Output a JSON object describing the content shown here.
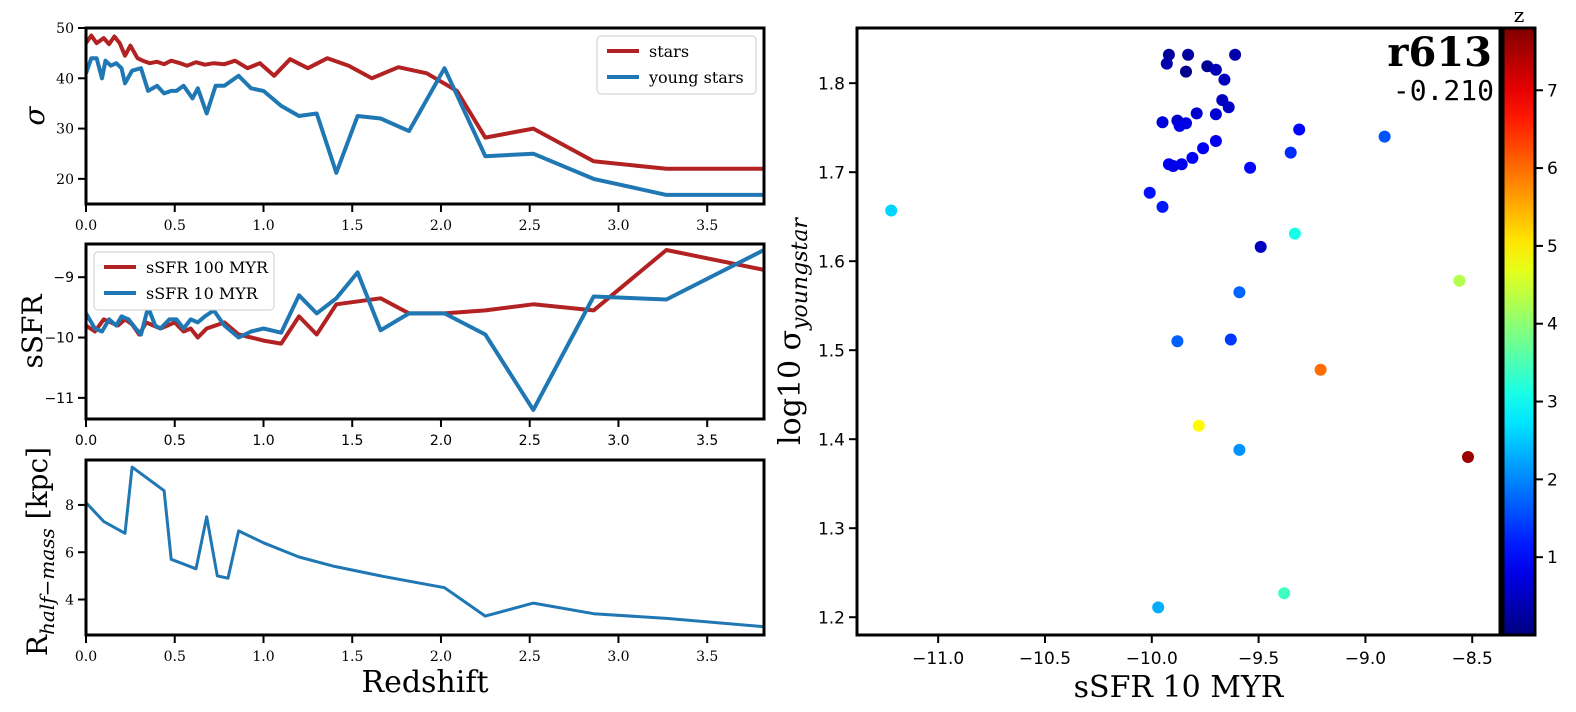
{
  "colors": {
    "stars": "#b22222",
    "young_stars": "#1f77b4",
    "axis": "#000000"
  },
  "chart_data": [
    {
      "type": "line",
      "name": "sigma-vs-redshift",
      "xlabel": "",
      "ylabel": "σ",
      "xlim": [
        0,
        3.82
      ],
      "ylim": [
        15,
        50
      ],
      "xticks": [
        0.0,
        0.5,
        1.0,
        1.5,
        2.0,
        2.5,
        3.0,
        3.5
      ],
      "xtick_labels": [
        "0.0",
        "0.5",
        "1.0",
        "1.5",
        "2.0",
        "2.5",
        "3.0",
        "3.5"
      ],
      "yticks": [
        20,
        30,
        40,
        50
      ],
      "ytick_labels": [
        "20",
        "30",
        "40",
        "50"
      ],
      "legend_position": "top-right",
      "series": [
        {
          "name": "stars",
          "x": [
            0.0,
            0.03,
            0.06,
            0.1,
            0.13,
            0.16,
            0.19,
            0.22,
            0.25,
            0.29,
            0.32,
            0.36,
            0.4,
            0.44,
            0.48,
            0.53,
            0.57,
            0.62,
            0.67,
            0.72,
            0.78,
            0.84,
            0.91,
            0.98,
            1.06,
            1.15,
            1.25,
            1.36,
            1.48,
            1.61,
            1.76,
            1.92,
            2.09,
            2.25,
            2.52,
            2.86,
            3.27,
            3.82
          ],
          "y": [
            47,
            48.5,
            47,
            48,
            46.8,
            48.3,
            47,
            44.5,
            46.5,
            44,
            43.5,
            43,
            43.3,
            42.8,
            43.5,
            43,
            42.5,
            43.2,
            42.7,
            43,
            42.8,
            43.5,
            42,
            43,
            40.5,
            43.8,
            42,
            44,
            42.5,
            40,
            42.2,
            41,
            37.5,
            28.2,
            30,
            23.5,
            22,
            22
          ]
        },
        {
          "name": "young stars",
          "x": [
            0.0,
            0.03,
            0.06,
            0.09,
            0.11,
            0.14,
            0.17,
            0.2,
            0.22,
            0.26,
            0.31,
            0.35,
            0.4,
            0.44,
            0.48,
            0.51,
            0.55,
            0.6,
            0.63,
            0.68,
            0.73,
            0.78,
            0.86,
            0.93,
            1.0,
            1.1,
            1.2,
            1.3,
            1.41,
            1.53,
            1.66,
            1.82,
            2.02,
            2.25,
            2.52,
            2.86,
            3.27,
            3.82
          ],
          "y": [
            41,
            44,
            44,
            40,
            43.5,
            42.5,
            43,
            42,
            39,
            41.5,
            42,
            37.5,
            38.5,
            37,
            37.5,
            37.5,
            38.5,
            36,
            38,
            33,
            38.5,
            38.5,
            40.5,
            38,
            37.5,
            34.5,
            32.5,
            33,
            21.2,
            32.5,
            32,
            29.5,
            42,
            24.5,
            25,
            20,
            16.8,
            16.8
          ]
        }
      ]
    },
    {
      "type": "line",
      "name": "ssfr-vs-redshift",
      "xlabel": "",
      "ylabel": "sSFR",
      "xlim": [
        0,
        3.82
      ],
      "ylim": [
        -11.35,
        -8.45
      ],
      "xticks": [
        0.0,
        0.5,
        1.0,
        1.5,
        2.0,
        2.5,
        3.0,
        3.5
      ],
      "xtick_labels": [
        "0.0",
        "0.5",
        "1.0",
        "1.5",
        "2.0",
        "2.5",
        "3.0",
        "3.5"
      ],
      "yticks": [
        -9,
        -10,
        -11
      ],
      "ytick_labels": [
        "−9",
        "−10",
        "−11"
      ],
      "legend_position": "top-left",
      "series": [
        {
          "name": "sSFR 100 MYR",
          "x": [
            0.0,
            0.05,
            0.1,
            0.14,
            0.18,
            0.22,
            0.26,
            0.3,
            0.34,
            0.38,
            0.42,
            0.46,
            0.5,
            0.55,
            0.59,
            0.63,
            0.68,
            0.73,
            0.78,
            0.86,
            0.93,
            1.0,
            1.1,
            1.2,
            1.3,
            1.41,
            1.66,
            1.82,
            2.02,
            2.25,
            2.52,
            2.86,
            3.27,
            3.82
          ],
          "y": [
            -9.8,
            -9.9,
            -9.7,
            -9.75,
            -9.8,
            -9.7,
            -9.78,
            -9.95,
            -9.75,
            -9.8,
            -9.85,
            -9.8,
            -9.75,
            -9.9,
            -9.85,
            -10.0,
            -9.85,
            -9.8,
            -9.75,
            -9.95,
            -10.0,
            -10.05,
            -10.1,
            -9.65,
            -9.95,
            -9.45,
            -9.35,
            -9.6,
            -9.6,
            -9.55,
            -9.45,
            -9.55,
            -8.55,
            -8.88
          ]
        },
        {
          "name": "sSFR 10 MYR",
          "x": [
            0.0,
            0.05,
            0.09,
            0.13,
            0.17,
            0.2,
            0.24,
            0.28,
            0.31,
            0.35,
            0.39,
            0.42,
            0.47,
            0.51,
            0.55,
            0.59,
            0.63,
            0.67,
            0.72,
            0.78,
            0.86,
            0.93,
            1.0,
            1.1,
            1.2,
            1.3,
            1.41,
            1.53,
            1.66,
            1.82,
            2.02,
            2.25,
            2.52,
            2.86,
            3.27,
            3.82
          ],
          "y": [
            -9.6,
            -9.85,
            -9.9,
            -9.7,
            -9.8,
            -9.65,
            -9.7,
            -9.85,
            -9.95,
            -9.5,
            -9.8,
            -9.85,
            -9.7,
            -9.7,
            -9.85,
            -9.7,
            -9.75,
            -9.65,
            -9.55,
            -9.8,
            -10.0,
            -9.9,
            -9.85,
            -9.92,
            -9.3,
            -9.6,
            -9.35,
            -8.92,
            -9.88,
            -9.6,
            -9.6,
            -9.95,
            -11.2,
            -9.32,
            -9.37,
            -8.55
          ]
        }
      ]
    },
    {
      "type": "line",
      "name": "rhalf-vs-redshift",
      "xlabel": "Redshift",
      "ylabel": "R_half−mass [kpc]",
      "ylabel_main": "R",
      "ylabel_sub": "half−mass",
      "ylabel_unit": " [kpc]",
      "xlim": [
        0,
        3.82
      ],
      "ylim": [
        2.5,
        9.9
      ],
      "xticks": [
        0.0,
        0.5,
        1.0,
        1.5,
        2.0,
        2.5,
        3.0,
        3.5
      ],
      "xtick_labels": [
        "0.0",
        "0.5",
        "1.0",
        "1.5",
        "2.0",
        "2.5",
        "3.0",
        "3.5"
      ],
      "yticks": [
        4,
        6,
        8
      ],
      "ytick_labels": [
        "4",
        "6",
        "8"
      ],
      "series": [
        {
          "x": [
            0.0,
            0.1,
            0.22,
            0.26,
            0.44,
            0.48,
            0.62,
            0.68,
            0.74,
            0.8,
            0.86,
            1.0,
            1.2,
            1.4,
            1.66,
            2.02,
            2.25,
            2.52,
            2.86,
            3.27,
            3.82
          ],
          "y": [
            8.1,
            7.3,
            6.8,
            9.6,
            8.6,
            5.7,
            5.3,
            7.5,
            5.0,
            4.9,
            6.9,
            6.4,
            5.8,
            5.4,
            5.0,
            4.5,
            3.3,
            3.85,
            3.4,
            3.2,
            2.85
          ]
        }
      ]
    },
    {
      "type": "scatter",
      "name": "sigma-vs-ssfr",
      "xlabel": "sSFR 10 MYR",
      "ylabel": "log10 σ_youngstar",
      "ylabel_main": "log10 σ",
      "ylabel_sub": "youngstar",
      "xlim": [
        -11.38,
        -8.37
      ],
      "ylim": [
        1.18,
        1.862
      ],
      "xticks": [
        -11.0,
        -10.5,
        -10.0,
        -9.5,
        -9.0,
        -8.5
      ],
      "xtick_labels": [
        "−11.0",
        "−10.5",
        "−10.0",
        "−9.5",
        "−9.0",
        "−8.5"
      ],
      "yticks": [
        1.2,
        1.3,
        1.4,
        1.5,
        1.6,
        1.7,
        1.8
      ],
      "ytick_labels": [
        "1.2",
        "1.3",
        "1.4",
        "1.5",
        "1.6",
        "1.7",
        "1.8"
      ],
      "annotation_title": "r613",
      "annotation_value": "-0.210",
      "colorbar": {
        "label": "z",
        "colormap": "jet",
        "range": [
          0,
          7.8
        ],
        "ticks": [
          1,
          2,
          3,
          4,
          5,
          6,
          7
        ],
        "tick_labels": [
          "1",
          "2",
          "3",
          "4",
          "5",
          "6",
          "7"
        ]
      },
      "points": [
        {
          "x": -9.92,
          "y": 1.832,
          "z": 0.2
        },
        {
          "x": -9.83,
          "y": 1.832,
          "z": 0.25
        },
        {
          "x": -9.61,
          "y": 1.832,
          "z": 0.3
        },
        {
          "x": -9.93,
          "y": 1.822,
          "z": 0.35
        },
        {
          "x": -9.74,
          "y": 1.819,
          "z": 0.15
        },
        {
          "x": -9.7,
          "y": 1.815,
          "z": 0.4
        },
        {
          "x": -9.84,
          "y": 1.813,
          "z": 0.1
        },
        {
          "x": -9.66,
          "y": 1.804,
          "z": 0.45
        },
        {
          "x": -9.67,
          "y": 1.781,
          "z": 0.5
        },
        {
          "x": -9.64,
          "y": 1.773,
          "z": 0.55
        },
        {
          "x": -9.79,
          "y": 1.766,
          "z": 0.6
        },
        {
          "x": -9.7,
          "y": 1.765,
          "z": 0.65
        },
        {
          "x": -9.88,
          "y": 1.758,
          "z": 0.55
        },
        {
          "x": -9.95,
          "y": 1.756,
          "z": 0.7
        },
        {
          "x": -9.84,
          "y": 1.755,
          "z": 0.75
        },
        {
          "x": -9.87,
          "y": 1.752,
          "z": 0.8
        },
        {
          "x": -9.31,
          "y": 1.748,
          "z": 1.0
        },
        {
          "x": -8.91,
          "y": 1.74,
          "z": 1.6
        },
        {
          "x": -9.7,
          "y": 1.735,
          "z": 0.85
        },
        {
          "x": -9.76,
          "y": 1.727,
          "z": 0.9
        },
        {
          "x": -9.35,
          "y": 1.722,
          "z": 1.3
        },
        {
          "x": -9.81,
          "y": 1.716,
          "z": 0.95
        },
        {
          "x": -9.92,
          "y": 1.709,
          "z": 0.9
        },
        {
          "x": -9.86,
          "y": 1.709,
          "z": 0.85
        },
        {
          "x": -9.9,
          "y": 1.707,
          "z": 0.8
        },
        {
          "x": -9.54,
          "y": 1.705,
          "z": 1.0
        },
        {
          "x": -10.01,
          "y": 1.677,
          "z": 1.1
        },
        {
          "x": -9.95,
          "y": 1.661,
          "z": 1.15
        },
        {
          "x": -11.22,
          "y": 1.657,
          "z": 2.6
        },
        {
          "x": -9.49,
          "y": 1.616,
          "z": 0.5
        },
        {
          "x": -9.33,
          "y": 1.631,
          "z": 3.1
        },
        {
          "x": -9.59,
          "y": 1.565,
          "z": 1.75
        },
        {
          "x": -8.56,
          "y": 1.578,
          "z": 4.3
        },
        {
          "x": -9.88,
          "y": 1.51,
          "z": 1.7
        },
        {
          "x": -9.63,
          "y": 1.512,
          "z": 1.4
        },
        {
          "x": -9.21,
          "y": 1.478,
          "z": 6.0
        },
        {
          "x": -9.78,
          "y": 1.415,
          "z": 4.9
        },
        {
          "x": -9.59,
          "y": 1.388,
          "z": 2.1
        },
        {
          "x": -8.52,
          "y": 1.38,
          "z": 7.6
        },
        {
          "x": -9.38,
          "y": 1.227,
          "z": 3.4
        },
        {
          "x": -9.97,
          "y": 1.211,
          "z": 2.3
        }
      ]
    }
  ]
}
